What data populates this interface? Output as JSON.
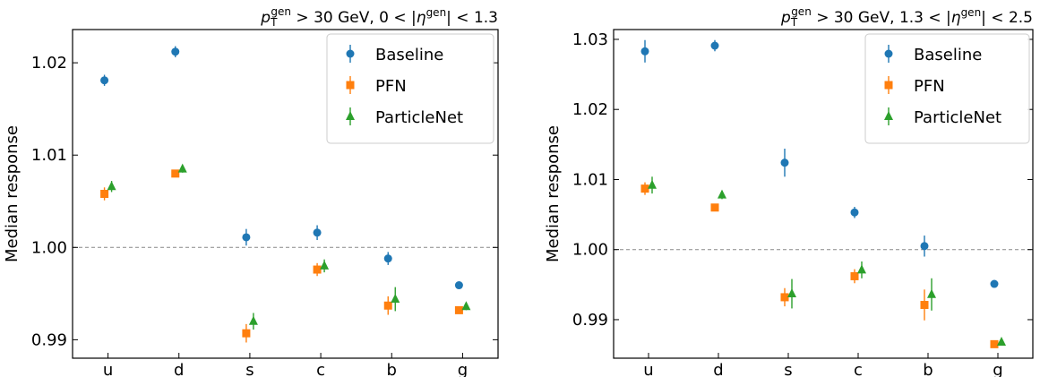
{
  "chart_data": [
    {
      "type": "scatter",
      "title": "p_T^gen > 30 GeV, 0 < |η^gen| < 1.3",
      "ylabel": "Median response",
      "categories": [
        "u",
        "d",
        "s",
        "c",
        "b",
        "g"
      ],
      "ylim": [
        0.988,
        1.0236
      ],
      "yticks": [
        0.99,
        1.0,
        1.01,
        1.02
      ],
      "ytick_labels": [
        "0.99",
        "1.00",
        "1.01",
        "1.02"
      ],
      "reference_line": 1.0,
      "legend_position": "top-right",
      "series": [
        {
          "name": "Baseline",
          "marker": "circle",
          "color": "#1f77b4",
          "values": [
            1.0181,
            1.0212,
            1.0011,
            1.0016,
            0.9988,
            0.9959
          ],
          "errors": [
            0.0006,
            0.0006,
            0.0009,
            0.0008,
            0.0007,
            0.0002
          ]
        },
        {
          "name": "PFN",
          "marker": "square",
          "color": "#ff7f0e",
          "values": [
            1.0058,
            1.008,
            0.9907,
            0.9976,
            0.9937,
            0.9932
          ],
          "errors": [
            0.0007,
            0.0004,
            0.001,
            0.0007,
            0.001,
            0.0004
          ]
        },
        {
          "name": "ParticleNet",
          "marker": "triangle",
          "color": "#2ca02c",
          "values": [
            1.0066,
            1.0085,
            0.992,
            0.998,
            0.9944,
            0.9936
          ],
          "errors": [
            0.0006,
            0.0004,
            0.0009,
            0.0007,
            0.0013,
            0.0004
          ]
        }
      ]
    },
    {
      "type": "scatter",
      "title": "p_T^gen > 30 GeV, 1.3 < |η^gen| < 2.5",
      "ylabel": "Median response",
      "categories": [
        "u",
        "d",
        "s",
        "c",
        "b",
        "g"
      ],
      "ylim": [
        0.9845,
        1.0314
      ],
      "yticks": [
        0.99,
        1.0,
        1.01,
        1.02,
        1.03
      ],
      "ytick_labels": [
        "0.99",
        "1.00",
        "1.01",
        "1.02",
        "1.03"
      ],
      "reference_line": 1.0,
      "legend_position": "top-right",
      "series": [
        {
          "name": "Baseline",
          "marker": "circle",
          "color": "#1f77b4",
          "values": [
            1.0283,
            1.0291,
            1.0124,
            1.0053,
            1.0005,
            0.9951
          ],
          "errors": [
            0.0016,
            0.0008,
            0.002,
            0.0008,
            0.0015,
            0.0003
          ]
        },
        {
          "name": "PFN",
          "marker": "square",
          "color": "#ff7f0e",
          "values": [
            1.0087,
            1.006,
            0.9932,
            0.9962,
            0.9921,
            0.9865
          ],
          "errors": [
            0.0009,
            0.0004,
            0.0013,
            0.001,
            0.0022,
            0.0002
          ]
        },
        {
          "name": "ParticleNet",
          "marker": "triangle",
          "color": "#2ca02c",
          "values": [
            1.0092,
            1.0078,
            0.9937,
            0.9971,
            0.9936,
            0.9868
          ],
          "errors": [
            0.0012,
            0.0006,
            0.0021,
            0.0012,
            0.0023,
            0.0002
          ]
        }
      ]
    }
  ]
}
